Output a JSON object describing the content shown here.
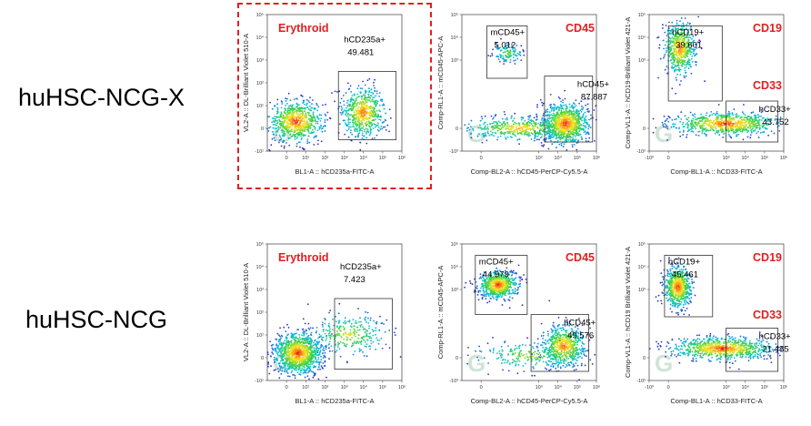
{
  "rows": [
    {
      "label": "huHSC-NCG-X"
    },
    {
      "label": "huHSC-NCG"
    }
  ],
  "colors": {
    "marker": "#e02020",
    "highlight": "#e02020"
  },
  "chart_data": [
    {
      "type": "scatter",
      "row": 0,
      "col": 0,
      "highlighted": true,
      "marker": "Erythroid",
      "xlabel": "BL1-A :: hCD235a-FITC-A",
      "ylabel": "VL2-A :: DL-Brilliant Violet 510-A",
      "xlim": [
        -1,
        6
      ],
      "ylim": [
        -1,
        5
      ],
      "xticks": [
        {
          "v": 0,
          "t": "0"
        },
        {
          "v": 1,
          "t": "10¹"
        },
        {
          "v": 2,
          "t": "10²"
        },
        {
          "v": 3,
          "t": "10³"
        },
        {
          "v": 4,
          "t": "10⁴"
        },
        {
          "v": 5,
          "t": "10⁵"
        },
        {
          "v": 6,
          "t": "10⁶"
        }
      ],
      "yticks": [
        {
          "v": -1,
          "t": "-10¹"
        },
        {
          "v": 0,
          "t": "0"
        },
        {
          "v": 1,
          "t": "10¹"
        },
        {
          "v": 2,
          "t": "10²"
        },
        {
          "v": 3,
          "t": "10³"
        },
        {
          "v": 4,
          "t": "10⁴"
        },
        {
          "v": 5,
          "t": "10⁵"
        }
      ],
      "clusters": [
        {
          "x": 0.5,
          "y": 0.3,
          "sx": 0.7,
          "sy": 0.45,
          "w": 0.5
        },
        {
          "x": 4.0,
          "y": 0.7,
          "sx": 0.55,
          "sy": 0.55,
          "w": 0.4
        }
      ],
      "gates": [
        {
          "name": "hCD235a+",
          "value": "49.481",
          "x0": 2.7,
          "x1": 5.7,
          "y0": -0.5,
          "y1": 2.5
        }
      ]
    },
    {
      "type": "scatter",
      "row": 0,
      "col": 1,
      "highlighted": false,
      "marker": "CD45",
      "xlabel": "Comp-BL2-A :: hCD45-PerCP-Cy5.5-A",
      "ylabel": "Comp-RL1-A :: mCD45-APC-A",
      "xlim": [
        -1,
        6
      ],
      "ylim": [
        -1,
        5
      ],
      "xticks": [
        {
          "v": 0,
          "t": "0"
        },
        {
          "v": 3,
          "t": "10³"
        },
        {
          "v": 4,
          "t": "10⁴"
        },
        {
          "v": 5,
          "t": "10⁵"
        },
        {
          "v": 6,
          "t": "10⁶"
        }
      ],
      "yticks": [
        {
          "v": -1,
          "t": "-10³"
        },
        {
          "v": 0,
          "t": "0"
        },
        {
          "v": 3,
          "t": "10³"
        },
        {
          "v": 4,
          "t": "10⁴"
        },
        {
          "v": 5,
          "t": "10⁵"
        }
      ],
      "clusters": [
        {
          "x": 1.4,
          "y": 3.3,
          "sx": 0.35,
          "sy": 0.2,
          "w": 0.08
        },
        {
          "x": 4.4,
          "y": 0.2,
          "sx": 0.6,
          "sy": 0.45,
          "w": 0.62
        },
        {
          "x": 2.0,
          "y": 0.0,
          "sx": 1.4,
          "sy": 0.25,
          "w": 0.3
        }
      ],
      "gates": [
        {
          "name": "mCD45+",
          "value": "5.012",
          "x0": 0.3,
          "x1": 2.4,
          "y0": 2.2,
          "y1": 4.5
        },
        {
          "name": "hCD45+",
          "value": "87.887",
          "x0": 3.3,
          "x1": 5.8,
          "y0": -0.6,
          "y1": 2.3
        }
      ]
    },
    {
      "type": "scatter",
      "row": 0,
      "col": 2,
      "highlighted": false,
      "marker": "CD19",
      "marker2": "CD33",
      "xlabel": "Comp-BL1-A :: hCD33-FITC-A",
      "ylabel": "Comp-VL1-A :: hCD19-Brilliant Violet 421-A",
      "xlim": [
        -1,
        6
      ],
      "ylim": [
        -1,
        5
      ],
      "xticks": [
        {
          "v": -1,
          "t": "-10³"
        },
        {
          "v": 0,
          "t": "0"
        },
        {
          "v": 3,
          "t": "10³"
        },
        {
          "v": 4,
          "t": "10⁴"
        },
        {
          "v": 5,
          "t": "10⁵"
        },
        {
          "v": 6,
          "t": "10⁶"
        }
      ],
      "yticks": [
        {
          "v": -1,
          "t": "-10³"
        },
        {
          "v": 0,
          "t": "0"
        },
        {
          "v": 3,
          "t": "10³"
        },
        {
          "v": 4,
          "t": "10⁴"
        },
        {
          "v": 5,
          "t": "10⁵"
        }
      ],
      "clusters": [
        {
          "x": 0.6,
          "y": 3.5,
          "sx": 0.4,
          "sy": 0.6,
          "w": 0.38
        },
        {
          "x": 3.0,
          "y": 0.2,
          "sx": 1.4,
          "sy": 0.25,
          "w": 0.5
        }
      ],
      "gates": [
        {
          "name": "hCD19+",
          "value": "39.601",
          "x0": 0.0,
          "x1": 2.8,
          "y0": 1.2,
          "y1": 4.5
        },
        {
          "name": "hCD33+",
          "value": "43.752",
          "x0": 3.0,
          "x1": 5.7,
          "y0": -0.6,
          "y1": 1.2
        }
      ]
    },
    {
      "type": "scatter",
      "row": 1,
      "col": 0,
      "highlighted": false,
      "marker": "Erythroid",
      "xlabel": "BL1-A :: hCD235a-FITC-A",
      "ylabel": "VL2-A :: DL-Brilliant Violet 510-A",
      "xlim": [
        -1,
        6
      ],
      "ylim": [
        -1,
        5
      ],
      "xticks": [
        {
          "v": 0,
          "t": "0"
        },
        {
          "v": 1,
          "t": "10¹"
        },
        {
          "v": 2,
          "t": "10²"
        },
        {
          "v": 3,
          "t": "10³"
        },
        {
          "v": 4,
          "t": "10⁴"
        },
        {
          "v": 5,
          "t": "10⁵"
        },
        {
          "v": 6,
          "t": "10⁶"
        }
      ],
      "yticks": [
        {
          "v": -1,
          "t": "-10¹"
        },
        {
          "v": 0,
          "t": "0"
        },
        {
          "v": 1,
          "t": "10¹"
        },
        {
          "v": 2,
          "t": "10²"
        },
        {
          "v": 3,
          "t": "10³"
        },
        {
          "v": 4,
          "t": "10⁴"
        },
        {
          "v": 5,
          "t": "10⁵"
        }
      ],
      "clusters": [
        {
          "x": 0.6,
          "y": 0.2,
          "sx": 0.6,
          "sy": 0.45,
          "w": 0.75
        },
        {
          "x": 3.2,
          "y": 1.0,
          "sx": 1.0,
          "sy": 0.45,
          "w": 0.2
        }
      ],
      "gates": [
        {
          "name": "hCD235a+",
          "value": "7.423",
          "x0": 2.5,
          "x1": 5.5,
          "y0": -0.5,
          "y1": 2.6
        }
      ]
    },
    {
      "type": "scatter",
      "row": 1,
      "col": 1,
      "highlighted": false,
      "marker": "CD45",
      "xlabel": "Comp-BL2-A :: hCD45-PerCP-Cy5.5-A",
      "ylabel": "Comp-RL1-A :: mCD45-APC-A",
      "xlim": [
        -1,
        6
      ],
      "ylim": [
        -1,
        5
      ],
      "xticks": [
        {
          "v": 0,
          "t": "0"
        },
        {
          "v": 3,
          "t": "10³"
        },
        {
          "v": 4,
          "t": "10⁴"
        },
        {
          "v": 5,
          "t": "10⁵"
        },
        {
          "v": 6,
          "t": "10⁶"
        }
      ],
      "yticks": [
        {
          "v": -1,
          "t": "-10³"
        },
        {
          "v": 0,
          "t": "0"
        },
        {
          "v": 3,
          "t": "10³"
        },
        {
          "v": 4,
          "t": "10⁴"
        },
        {
          "v": 5,
          "t": "10⁵"
        }
      ],
      "clusters": [
        {
          "x": 0.9,
          "y": 3.2,
          "sx": 0.5,
          "sy": 0.3,
          "w": 0.45
        },
        {
          "x": 4.3,
          "y": 0.5,
          "sx": 0.55,
          "sy": 0.45,
          "w": 0.4
        },
        {
          "x": 2.5,
          "y": 0.1,
          "sx": 1.3,
          "sy": 0.3,
          "w": 0.15
        }
      ],
      "gates": [
        {
          "name": "mCD45+",
          "value": "44.979",
          "x0": -0.3,
          "x1": 2.4,
          "y0": 1.9,
          "y1": 4.5
        },
        {
          "name": "hCD45+",
          "value": "49.576",
          "x0": 2.6,
          "x1": 5.6,
          "y0": -0.6,
          "y1": 1.9
        }
      ]
    },
    {
      "type": "scatter",
      "row": 1,
      "col": 2,
      "highlighted": false,
      "marker": "CD19",
      "marker2": "CD33",
      "xlabel": "Comp-BL1-A :: hCD33-FITC-A",
      "ylabel": "Comp-VL1-A :: hCD19 Brilliant Violet 421-A",
      "xlim": [
        -1,
        6
      ],
      "ylim": [
        -1,
        5
      ],
      "xticks": [
        {
          "v": -1,
          "t": "-10³"
        },
        {
          "v": 0,
          "t": "0"
        },
        {
          "v": 3,
          "t": "10³"
        },
        {
          "v": 4,
          "t": "10⁴"
        },
        {
          "v": 5,
          "t": "10⁵"
        },
        {
          "v": 6,
          "t": "10⁶"
        }
      ],
      "yticks": [
        {
          "v": -1,
          "t": "-10³"
        },
        {
          "v": 0,
          "t": "0"
        },
        {
          "v": 3,
          "t": "10³"
        },
        {
          "v": 4,
          "t": "10⁴"
        },
        {
          "v": 5,
          "t": "10⁵"
        }
      ],
      "clusters": [
        {
          "x": 0.5,
          "y": 3.1,
          "sx": 0.35,
          "sy": 0.45,
          "w": 0.45
        },
        {
          "x": 2.8,
          "y": 0.4,
          "sx": 1.3,
          "sy": 0.25,
          "w": 0.55
        }
      ],
      "gates": [
        {
          "name": "hCD19+",
          "value": "45.461",
          "x0": -0.2,
          "x1": 2.3,
          "y0": 1.8,
          "y1": 4.5
        },
        {
          "name": "hCD33+",
          "value": "21.485",
          "x0": 3.0,
          "x1": 5.7,
          "y0": -0.6,
          "y1": 1.3
        }
      ]
    }
  ]
}
